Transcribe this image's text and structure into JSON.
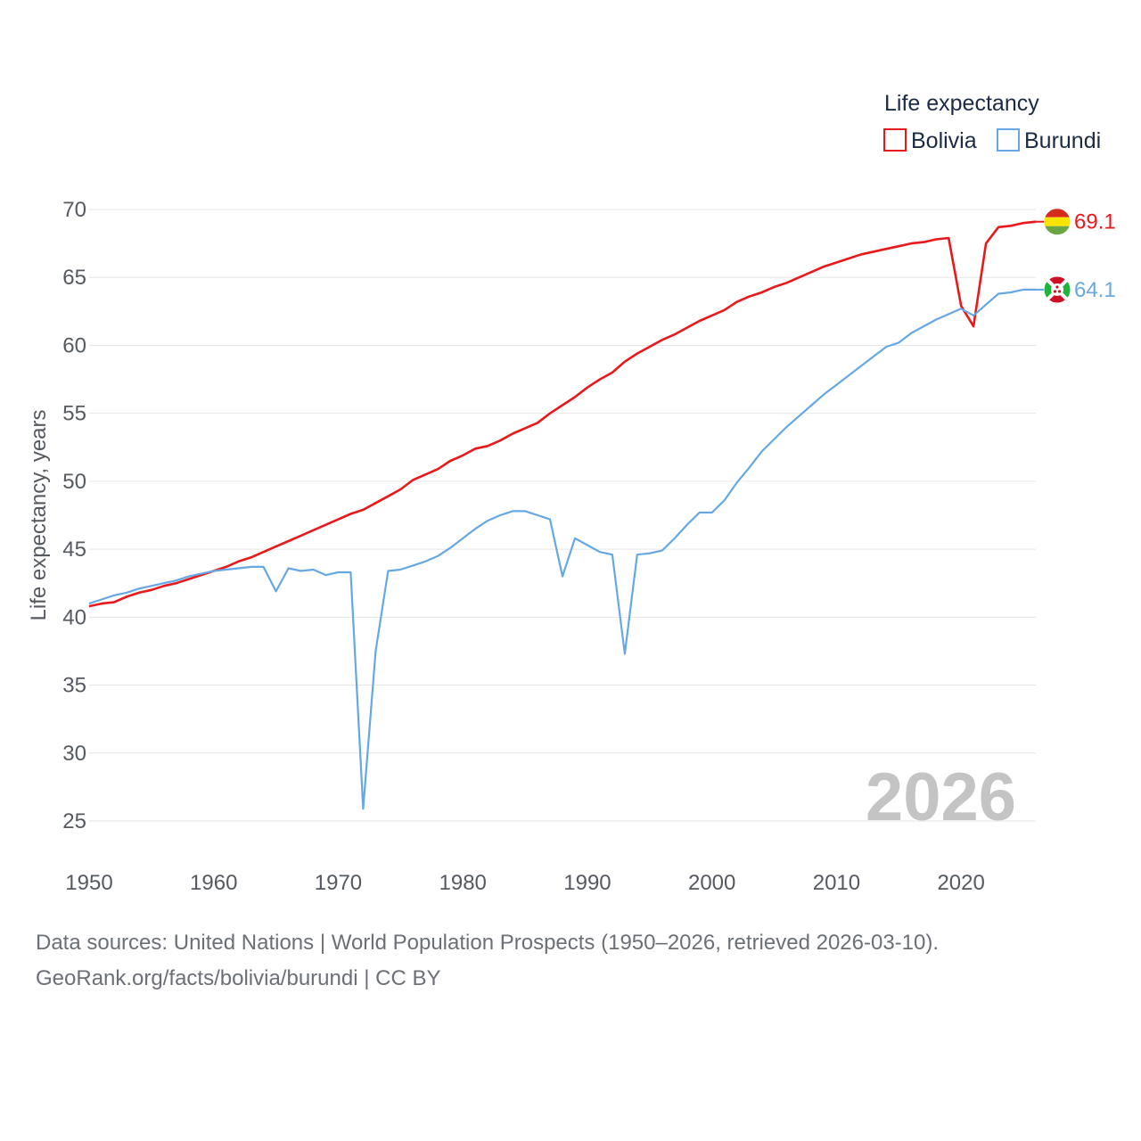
{
  "chart_data": {
    "type": "line",
    "legend_title": "Life expectancy",
    "ylabel": "Life expectancy, years",
    "xlabel": "",
    "xlim": [
      1950,
      2026
    ],
    "ylim": [
      25,
      70
    ],
    "x_ticks": [
      1950,
      1960,
      1970,
      1980,
      1990,
      2000,
      2010,
      2020
    ],
    "y_ticks": [
      25,
      30,
      35,
      40,
      45,
      50,
      55,
      60,
      65,
      70
    ],
    "current_year_label": "2026",
    "legend_position": "top-right",
    "series": [
      {
        "name": "Bolivia",
        "color": "#e8191b",
        "end_label": "69.1",
        "flag_colors": [
          "#d52b1e",
          "#f9e300",
          "#6ca543"
        ],
        "x": [
          1950,
          1951,
          1952,
          1953,
          1954,
          1955,
          1956,
          1957,
          1958,
          1959,
          1960,
          1961,
          1962,
          1963,
          1964,
          1965,
          1966,
          1967,
          1968,
          1969,
          1970,
          1971,
          1972,
          1973,
          1974,
          1975,
          1976,
          1977,
          1978,
          1979,
          1980,
          1981,
          1982,
          1983,
          1984,
          1985,
          1986,
          1987,
          1988,
          1989,
          1990,
          1991,
          1992,
          1993,
          1994,
          1995,
          1996,
          1997,
          1998,
          1999,
          2000,
          2001,
          2002,
          2003,
          2004,
          2005,
          2006,
          2007,
          2008,
          2009,
          2010,
          2011,
          2012,
          2013,
          2014,
          2015,
          2016,
          2017,
          2018,
          2019,
          2020,
          2021,
          2022,
          2023,
          2024,
          2025,
          2026
        ],
        "values": [
          40.8,
          41.0,
          41.1,
          41.5,
          41.8,
          42.0,
          42.3,
          42.5,
          42.8,
          43.1,
          43.4,
          43.7,
          44.1,
          44.4,
          44.8,
          45.2,
          45.6,
          46.0,
          46.4,
          46.8,
          47.2,
          47.6,
          47.9,
          48.4,
          48.9,
          49.4,
          50.1,
          50.5,
          50.9,
          51.5,
          51.9,
          52.4,
          52.6,
          53.0,
          53.5,
          53.9,
          54.3,
          55.0,
          55.6,
          56.2,
          56.9,
          57.5,
          58.0,
          58.8,
          59.4,
          59.9,
          60.4,
          60.8,
          61.3,
          61.8,
          62.2,
          62.6,
          63.2,
          63.6,
          63.9,
          64.3,
          64.6,
          65.0,
          65.4,
          65.8,
          66.1,
          66.4,
          66.7,
          66.9,
          67.1,
          67.3,
          67.5,
          67.6,
          67.8,
          67.9,
          62.9,
          61.4,
          67.5,
          68.7,
          68.8,
          69.0,
          69.1
        ]
      },
      {
        "name": "Burundi",
        "color": "#65a8e4",
        "end_label": "64.1",
        "flag_colors": [
          "#ce1126",
          "#1eb53a",
          "#ffffff"
        ],
        "x": [
          1950,
          1951,
          1952,
          1953,
          1954,
          1955,
          1956,
          1957,
          1958,
          1959,
          1960,
          1961,
          1962,
          1963,
          1964,
          1965,
          1966,
          1967,
          1968,
          1969,
          1970,
          1971,
          1972,
          1973,
          1974,
          1975,
          1976,
          1977,
          1978,
          1979,
          1980,
          1981,
          1982,
          1983,
          1984,
          1985,
          1986,
          1987,
          1988,
          1989,
          1990,
          1991,
          1992,
          1993,
          1994,
          1995,
          1996,
          1997,
          1998,
          1999,
          2000,
          2001,
          2002,
          2003,
          2004,
          2005,
          2006,
          2007,
          2008,
          2009,
          2010,
          2011,
          2012,
          2013,
          2014,
          2015,
          2016,
          2017,
          2018,
          2019,
          2020,
          2021,
          2022,
          2023,
          2024,
          2025,
          2026
        ],
        "values": [
          41.0,
          41.3,
          41.6,
          41.8,
          42.1,
          42.3,
          42.5,
          42.7,
          43.0,
          43.2,
          43.4,
          43.5,
          43.6,
          43.7,
          43.7,
          41.9,
          43.6,
          43.4,
          43.5,
          43.1,
          43.3,
          43.3,
          25.9,
          37.5,
          43.4,
          43.5,
          43.8,
          44.1,
          44.5,
          45.1,
          45.8,
          46.5,
          47.1,
          47.5,
          47.8,
          47.8,
          47.5,
          47.2,
          43.0,
          45.8,
          45.3,
          44.8,
          44.6,
          37.3,
          44.6,
          44.7,
          44.9,
          45.8,
          46.8,
          47.7,
          47.7,
          48.6,
          49.9,
          51.0,
          52.2,
          53.1,
          54.0,
          54.8,
          55.6,
          56.4,
          57.1,
          57.8,
          58.5,
          59.2,
          59.9,
          60.2,
          60.9,
          61.4,
          61.9,
          62.3,
          62.7,
          62.2,
          63.0,
          63.8,
          63.9,
          64.1,
          64.1
        ]
      }
    ]
  },
  "footer": {
    "line1": "Data sources: United Nations | World Population Prospects (1950–2026, retrieved 2026-03-10).",
    "line2": "GeoRank.org/facts/bolivia/burundi | CC BY"
  }
}
